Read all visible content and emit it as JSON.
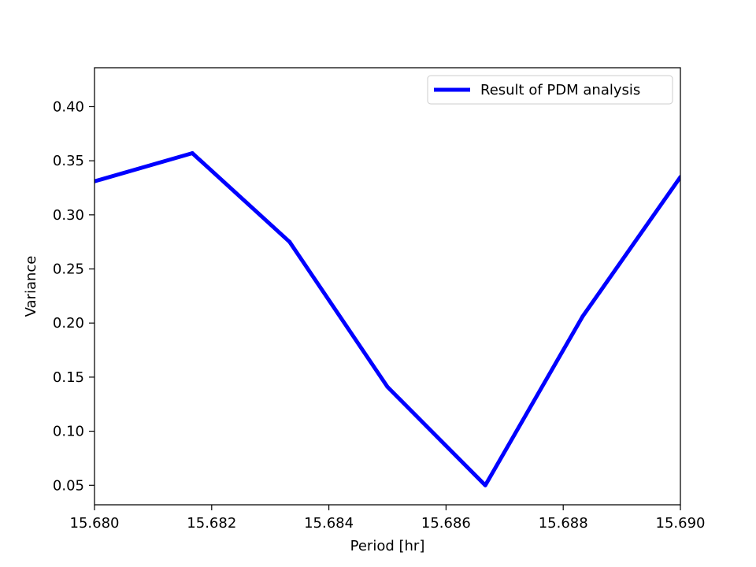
{
  "chart_data": {
    "type": "line",
    "title": "",
    "xlabel": "Period [hr]",
    "ylabel": "Variance",
    "xlim": [
      15.68,
      15.69
    ],
    "ylim": [
      0.032,
      0.436
    ],
    "x_ticks": [
      "15.680",
      "15.682",
      "15.684",
      "15.686",
      "15.688",
      "15.690"
    ],
    "x_tick_values": [
      15.68,
      15.682,
      15.684,
      15.686,
      15.688,
      15.69
    ],
    "y_ticks": [
      "0.05",
      "0.10",
      "0.15",
      "0.20",
      "0.25",
      "0.30",
      "0.35",
      "0.40"
    ],
    "y_tick_values": [
      0.05,
      0.1,
      0.15,
      0.2,
      0.25,
      0.3,
      0.35,
      0.4
    ],
    "grid": false,
    "legend_position": "upper right",
    "series": [
      {
        "name": "Result of PDM analysis",
        "color": "#0000ff",
        "x": [
          15.68,
          15.68167,
          15.68333,
          15.685,
          15.68667,
          15.68833,
          15.69
        ],
        "y": [
          0.331,
          0.357,
          0.275,
          0.141,
          0.05,
          0.206,
          0.335
        ]
      }
    ]
  }
}
